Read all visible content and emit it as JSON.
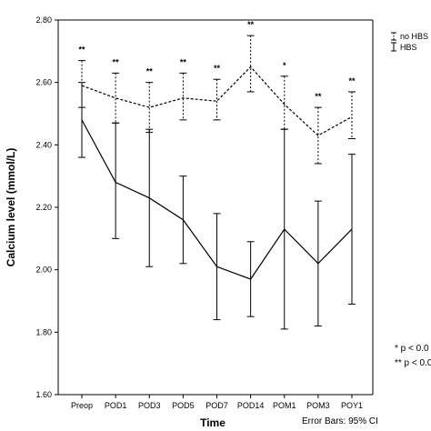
{
  "chart_data": {
    "type": "line",
    "xlabel": "Time",
    "ylabel": "Calcium level (mmol/L)",
    "categories": [
      "Preop",
      "POD1",
      "POD3",
      "POD5",
      "POD7",
      "POD14",
      "POM1",
      "POM3",
      "POY1"
    ],
    "ylim": [
      1.6,
      2.8
    ],
    "yticks": [
      "1.60",
      "1.80",
      "2.00",
      "2.20",
      "2.40",
      "2.60",
      "2.80"
    ],
    "grid": false,
    "legend_position": "top-right",
    "series": [
      {
        "name": "no HBS",
        "style": "dashed",
        "values": [
          2.59,
          2.55,
          2.52,
          2.55,
          2.54,
          2.65,
          2.53,
          2.43,
          2.49
        ],
        "ci_low": [
          2.52,
          2.47,
          2.44,
          2.48,
          2.48,
          2.57,
          2.45,
          2.34,
          2.42
        ],
        "ci_high": [
          2.67,
          2.63,
          2.6,
          2.63,
          2.61,
          2.75,
          2.62,
          2.52,
          2.57
        ],
        "significance": [
          "**",
          "**",
          "**",
          "**",
          "**",
          "**",
          "*",
          "**",
          "**"
        ]
      },
      {
        "name": "HBS",
        "style": "solid",
        "values": [
          2.48,
          2.28,
          2.23,
          2.16,
          2.01,
          1.97,
          2.13,
          2.02,
          2.13
        ],
        "ci_low": [
          2.36,
          2.1,
          2.01,
          2.02,
          1.84,
          1.85,
          1.81,
          1.82,
          1.89
        ],
        "ci_high": [
          2.6,
          2.47,
          2.45,
          2.3,
          2.18,
          2.09,
          2.45,
          2.22,
          2.37
        ]
      }
    ],
    "footnotes": [
      "* p < 0.0",
      "** p < 0.0"
    ],
    "error_bars_label": "Error Bars: 95% CI"
  }
}
